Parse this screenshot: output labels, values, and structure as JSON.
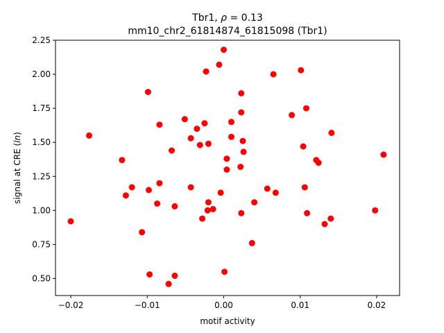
{
  "chart_data": {
    "type": "scatter",
    "title_line1_prefix": "Tbr1, ",
    "title_rho_symbol": "ρ",
    "title_rho_value": " = 0.13",
    "title_line2": "mm10_chr2_61814874_61815098 (Tbr1)",
    "xlabel": "motif activity",
    "ylabel_prefix": "signal at CRE (",
    "ylabel_italic": "ln",
    "ylabel_suffix": ")",
    "xlim": [
      -0.022,
      0.023
    ],
    "ylim": [
      0.375,
      2.25
    ],
    "xticks": [
      -0.02,
      -0.01,
      0.0,
      0.01,
      0.02
    ],
    "xtick_labels": [
      "−0.02",
      "−0.01",
      "0.00",
      "0.01",
      "0.02"
    ],
    "yticks": [
      0.5,
      0.75,
      1.0,
      1.25,
      1.5,
      1.75,
      2.0,
      2.25
    ],
    "ytick_labels": [
      "0.50",
      "0.75",
      "1.00",
      "1.25",
      "1.50",
      "1.75",
      "2.00",
      "2.25"
    ],
    "marker_color": "#ff0000",
    "grid": false,
    "points": [
      {
        "x": -0.02,
        "y": 0.92
      },
      {
        "x": -0.0176,
        "y": 1.55
      },
      {
        "x": -0.0133,
        "y": 1.37
      },
      {
        "x": -0.0128,
        "y": 1.11
      },
      {
        "x": -0.012,
        "y": 1.17
      },
      {
        "x": -0.0107,
        "y": 0.84
      },
      {
        "x": -0.0099,
        "y": 1.87
      },
      {
        "x": -0.0098,
        "y": 1.15
      },
      {
        "x": -0.0097,
        "y": 0.53
      },
      {
        "x": -0.0087,
        "y": 1.05
      },
      {
        "x": -0.0084,
        "y": 1.2
      },
      {
        "x": -0.0084,
        "y": 1.63
      },
      {
        "x": -0.0072,
        "y": 0.46
      },
      {
        "x": -0.0068,
        "y": 1.44
      },
      {
        "x": -0.0064,
        "y": 1.03
      },
      {
        "x": -0.0064,
        "y": 0.52
      },
      {
        "x": -0.0051,
        "y": 1.67
      },
      {
        "x": -0.0043,
        "y": 1.53
      },
      {
        "x": -0.0043,
        "y": 1.17
      },
      {
        "x": -0.0035,
        "y": 1.6
      },
      {
        "x": -0.0031,
        "y": 1.48
      },
      {
        "x": -0.0028,
        "y": 0.94
      },
      {
        "x": -0.0025,
        "y": 1.64
      },
      {
        "x": -0.0023,
        "y": 2.02
      },
      {
        "x": -0.002,
        "y": 1.49
      },
      {
        "x": -0.002,
        "y": 1.06
      },
      {
        "x": -0.0021,
        "y": 1.0
      },
      {
        "x": -0.0014,
        "y": 1.01
      },
      {
        "x": -0.0006,
        "y": 2.07
      },
      {
        "x": -0.0004,
        "y": 1.13
      },
      {
        "x": 0.0,
        "y": 2.18
      },
      {
        "x": 0.0001,
        "y": 0.55
      },
      {
        "x": 0.0004,
        "y": 1.3
      },
      {
        "x": 0.0004,
        "y": 1.38
      },
      {
        "x": 0.001,
        "y": 1.54
      },
      {
        "x": 0.001,
        "y": 1.65
      },
      {
        "x": 0.0022,
        "y": 1.32
      },
      {
        "x": 0.0023,
        "y": 1.86
      },
      {
        "x": 0.0023,
        "y": 1.72
      },
      {
        "x": 0.0023,
        "y": 0.98
      },
      {
        "x": 0.0025,
        "y": 1.51
      },
      {
        "x": 0.0026,
        "y": 1.43
      },
      {
        "x": 0.0037,
        "y": 0.76
      },
      {
        "x": 0.004,
        "y": 1.06
      },
      {
        "x": 0.0057,
        "y": 1.16
      },
      {
        "x": 0.0065,
        "y": 2.0
      },
      {
        "x": 0.0068,
        "y": 1.13
      },
      {
        "x": 0.0089,
        "y": 1.7
      },
      {
        "x": 0.0101,
        "y": 2.03
      },
      {
        "x": 0.0104,
        "y": 1.47
      },
      {
        "x": 0.0106,
        "y": 1.17
      },
      {
        "x": 0.0108,
        "y": 1.75
      },
      {
        "x": 0.0109,
        "y": 0.98
      },
      {
        "x": 0.0121,
        "y": 1.37
      },
      {
        "x": 0.0124,
        "y": 1.35
      },
      {
        "x": 0.0132,
        "y": 0.9
      },
      {
        "x": 0.014,
        "y": 0.94
      },
      {
        "x": 0.0141,
        "y": 1.57
      },
      {
        "x": 0.0198,
        "y": 1.0
      },
      {
        "x": 0.0209,
        "y": 1.41
      }
    ]
  }
}
